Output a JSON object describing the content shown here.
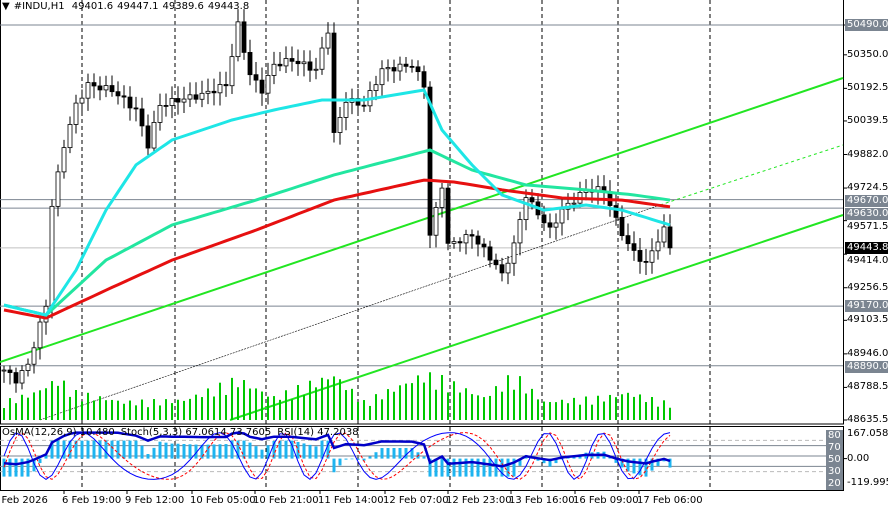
{
  "header": {
    "symbol": "#INDU,H1",
    "open": "49401.6",
    "high": "49447.1",
    "low": "49389.6",
    "close": "49443.8"
  },
  "indicators": {
    "osma": "OsMA(12,26,9) 10.480",
    "stoch": "Stoch(5,3,3) 67.0614 73.7605",
    "rsi": "RSI(14) 47.2038"
  },
  "indicator_scale": {
    "max": "167.058",
    "min": "-119.995",
    "levels": [
      "80",
      "70",
      "50",
      "30",
      "20"
    ],
    "zero": "0.00"
  },
  "colors": {
    "up_candle": "#ffffff",
    "down_candle": "#000000",
    "volume": "#00c800",
    "ma_fast": "#1ee6e6",
    "ma_mid": "#22e6a0",
    "ma_slow": "#e61010",
    "channel": "#22e622",
    "osma": "#1eb4f0",
    "stoch_main": "#0000ff",
    "stoch_signal": "#ff0000",
    "rsi": "#0000c8",
    "level_line": "#7b8591"
  },
  "chart_data": {
    "type": "candlestick",
    "symbol": "#INDU",
    "timeframe": "H1",
    "ylim": [
      48635.5,
      50490.0
    ],
    "y_ticks": [
      "50490.0",
      "50350.0",
      "50192.5",
      "50039.5",
      "49882.0",
      "49724.5",
      "49571.5",
      "49414.0",
      "49256.5",
      "49103.5",
      "48946.0",
      "48788.5",
      "48635.5"
    ],
    "x_ticks": [
      "6 Feb 2026",
      "6 Feb 19:00",
      "9 Feb 12:00",
      "10 Feb 05:00",
      "10 Feb 21:00",
      "11 Feb 14:00",
      "12 Feb 07:00",
      "12 Feb 23:00",
      "13 Feb 16:00",
      "16 Feb 09:00",
      "17 Feb 06:00"
    ],
    "price_levels": [
      "50490.0",
      "49670.0",
      "49630.0",
      "49170.0",
      "48890.0"
    ],
    "current_price": "49443.8",
    "close_path": [
      [
        0,
        48870
      ],
      [
        2,
        48824
      ],
      [
        4,
        48894
      ],
      [
        7,
        49175
      ],
      [
        8,
        49645
      ],
      [
        10,
        49927
      ],
      [
        12,
        50114
      ],
      [
        14,
        50209
      ],
      [
        18,
        50185
      ],
      [
        22,
        50091
      ],
      [
        24,
        49927
      ],
      [
        26,
        50114
      ],
      [
        29,
        50138
      ],
      [
        33,
        50162
      ],
      [
        37,
        50209
      ],
      [
        39,
        50490
      ],
      [
        41,
        50256
      ],
      [
        43,
        50185
      ],
      [
        45,
        50303
      ],
      [
        48,
        50326
      ],
      [
        52,
        50279
      ],
      [
        54,
        50467
      ],
      [
        55,
        49974
      ],
      [
        57,
        50138
      ],
      [
        60,
        50114
      ],
      [
        63,
        50279
      ],
      [
        68,
        50303
      ],
      [
        70,
        50209
      ],
      [
        71,
        49504
      ],
      [
        73,
        49739
      ],
      [
        74,
        49457
      ],
      [
        78,
        49504
      ],
      [
        82,
        49363
      ],
      [
        83,
        49316
      ],
      [
        85,
        49457
      ],
      [
        87,
        49692
      ],
      [
        88,
        49645
      ],
      [
        91,
        49527
      ],
      [
        93,
        49621
      ],
      [
        97,
        49716
      ],
      [
        100,
        49716
      ],
      [
        102,
        49574
      ],
      [
        104,
        49457
      ],
      [
        107,
        49363
      ],
      [
        108,
        49433
      ],
      [
        110,
        49527
      ],
      [
        111,
        49443.8
      ]
    ],
    "ma_fast_path": [
      [
        0,
        49175
      ],
      [
        7,
        49128
      ],
      [
        12,
        49339
      ],
      [
        17,
        49621
      ],
      [
        22,
        49833
      ],
      [
        28,
        49950
      ],
      [
        38,
        50044
      ],
      [
        45,
        50091
      ],
      [
        53,
        50138
      ],
      [
        60,
        50138
      ],
      [
        70,
        50185
      ],
      [
        73,
        49997
      ],
      [
        78,
        49833
      ],
      [
        83,
        49692
      ],
      [
        90,
        49621
      ],
      [
        97,
        49645
      ],
      [
        103,
        49621
      ],
      [
        111,
        49551
      ]
    ],
    "ma_mid_path": [
      [
        0,
        49175
      ],
      [
        7,
        49128
      ],
      [
        17,
        49386
      ],
      [
        28,
        49551
      ],
      [
        42,
        49668
      ],
      [
        55,
        49786
      ],
      [
        71,
        49903
      ],
      [
        78,
        49809
      ],
      [
        87,
        49739
      ],
      [
        97,
        49716
      ],
      [
        105,
        49692
      ],
      [
        111,
        49668
      ]
    ],
    "ma_slow_path": [
      [
        0,
        49152
      ],
      [
        7,
        49114
      ],
      [
        17,
        49245
      ],
      [
        28,
        49386
      ],
      [
        42,
        49527
      ],
      [
        55,
        49668
      ],
      [
        70,
        49762
      ],
      [
        75,
        49753
      ],
      [
        83,
        49716
      ],
      [
        93,
        49678
      ],
      [
        103,
        49668
      ],
      [
        111,
        49636
      ]
    ],
    "volume_path": [
      [
        0,
        20
      ],
      [
        5,
        30
      ],
      [
        9,
        45
      ],
      [
        12,
        30
      ],
      [
        20,
        20
      ],
      [
        30,
        22
      ],
      [
        39,
        45
      ],
      [
        45,
        25
      ],
      [
        55,
        50
      ],
      [
        60,
        20
      ],
      [
        70,
        50
      ],
      [
        73,
        45
      ],
      [
        80,
        25
      ],
      [
        85,
        50
      ],
      [
        90,
        20
      ],
      [
        100,
        25
      ],
      [
        104,
        30
      ],
      [
        111,
        18
      ]
    ]
  }
}
